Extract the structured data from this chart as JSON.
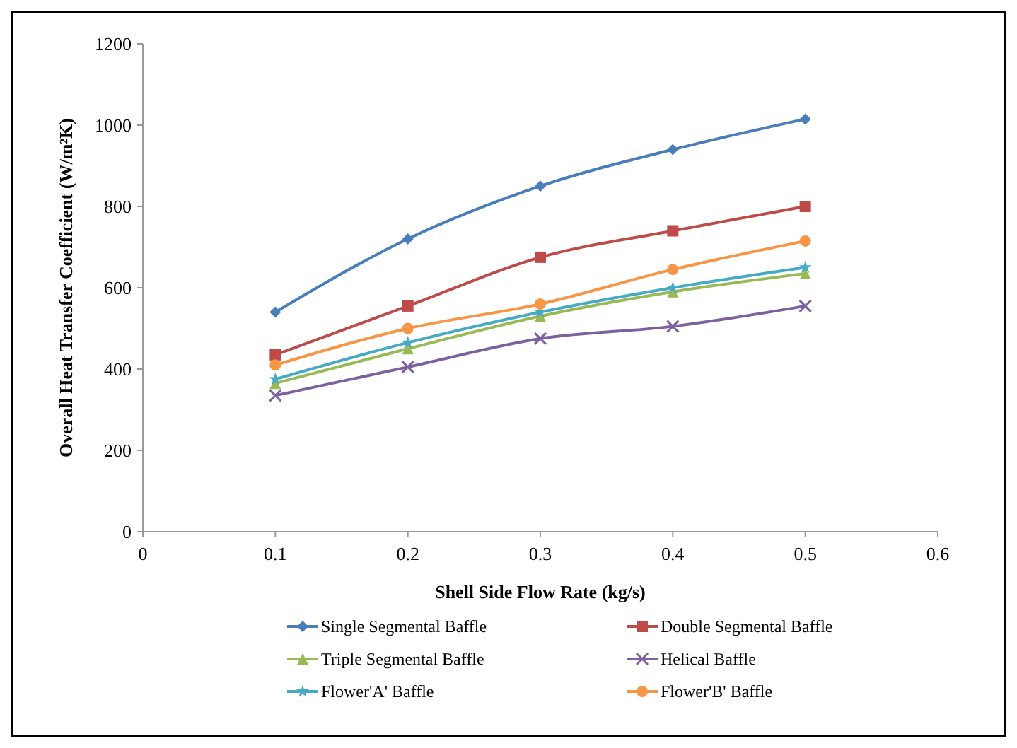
{
  "chart_data": {
    "type": "line",
    "xlabel": "Shell Side Flow Rate (kg/s)",
    "ylabel": "Overall Heat Transfer Coefficient  (W/m²K)",
    "x": [
      0.1,
      0.2,
      0.3,
      0.4,
      0.5
    ],
    "xlim": [
      0,
      0.6
    ],
    "xticks": [
      0,
      0.1,
      0.2,
      0.3,
      0.4,
      0.5,
      0.6
    ],
    "ylim": [
      0,
      1200
    ],
    "yticks": [
      0,
      200,
      400,
      600,
      800,
      1000,
      1200
    ],
    "grid": false,
    "legend": "bottom",
    "line_style": "solid",
    "series": [
      {
        "name": "Single Segmental Baffle",
        "color": "#4a7ebb",
        "marker": "diamond",
        "values": [
          540,
          720,
          850,
          940,
          1015
        ]
      },
      {
        "name": "Double Segmental Baffle",
        "color": "#be4b48",
        "marker": "square",
        "values": [
          435,
          555,
          675,
          740,
          800
        ]
      },
      {
        "name": "Triple Segmental Baffle",
        "color": "#98b954",
        "marker": "triangle",
        "values": [
          365,
          450,
          530,
          590,
          635
        ]
      },
      {
        "name": "Helical Baffle",
        "color": "#7d60a0",
        "marker": "cross",
        "values": [
          335,
          405,
          475,
          505,
          555
        ]
      },
      {
        "name": "Flower'A' Baffle",
        "color": "#46aac5",
        "marker": "star",
        "values": [
          375,
          465,
          540,
          600,
          650
        ]
      },
      {
        "name": "Flower'B' Baffle",
        "color": "#f79646",
        "marker": "circle",
        "values": [
          410,
          500,
          560,
          645,
          715
        ]
      }
    ]
  }
}
